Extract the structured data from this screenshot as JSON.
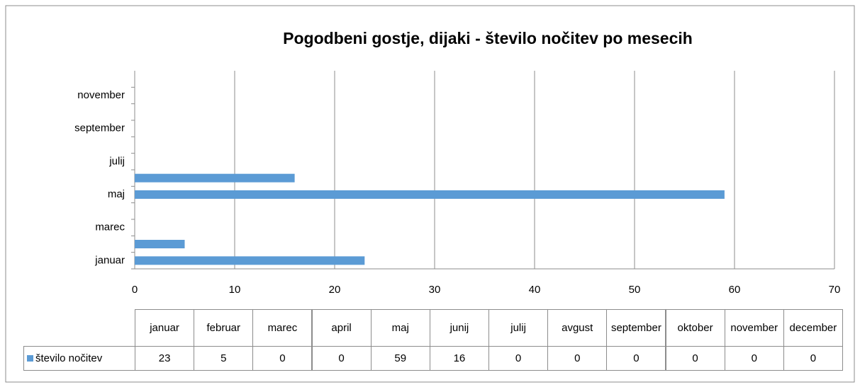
{
  "chart_data": {
    "type": "bar",
    "orientation": "horizontal",
    "title": "Pogodbeni gostje, dijaki - število nočitev po mesecih",
    "categories": [
      "januar",
      "februar",
      "marec",
      "april",
      "maj",
      "junij",
      "julij",
      "avgust",
      "september",
      "oktober",
      "november",
      "december"
    ],
    "series": [
      {
        "name": "število nočitev",
        "color": "#5b9bd5",
        "values": [
          23,
          5,
          0,
          0,
          59,
          16,
          0,
          0,
          0,
          0,
          0,
          0
        ]
      }
    ],
    "xlim": [
      0,
      70
    ],
    "xticks": [
      0,
      10,
      20,
      30,
      40,
      50,
      60,
      70
    ],
    "grid": true,
    "data_table": true
  }
}
